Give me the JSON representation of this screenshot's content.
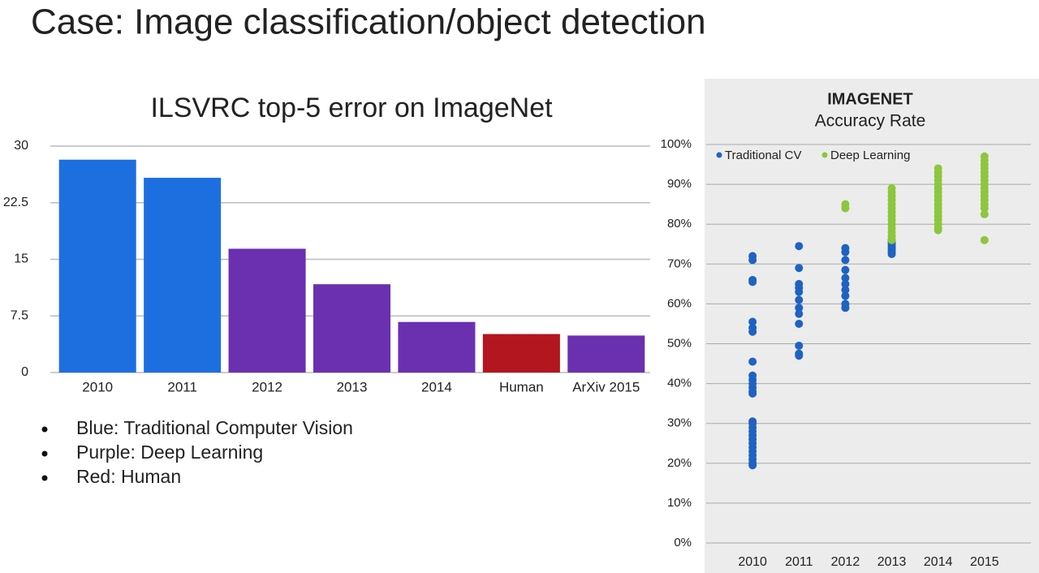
{
  "slide": {
    "title": "Case: Image classification/object detection",
    "bullets": [
      "Blue: Traditional Computer Vision",
      "Purple: Deep Learning",
      "Red: Human"
    ]
  },
  "chart_data": [
    {
      "type": "bar",
      "title": "ILSVRC top-5 error on ImageNet",
      "categories": [
        "2010",
        "2011",
        "2012",
        "2013",
        "2014",
        "Human",
        "ArXiv 2015"
      ],
      "values": [
        28.2,
        25.8,
        16.4,
        11.7,
        6.7,
        5.1,
        4.9
      ],
      "colors": [
        "#1d6fe0",
        "#1d6fe0",
        "#6b30b0",
        "#6b30b0",
        "#6b30b0",
        "#b3161f",
        "#6b30b0"
      ],
      "ylim": [
        0,
        30
      ],
      "yticks": [
        0,
        7.5,
        15,
        22.5,
        30
      ],
      "grid": true
    },
    {
      "type": "scatter",
      "title": "IMAGENET",
      "subtitle": "Accuracy Rate",
      "xlim": [
        2009,
        2016
      ],
      "xticks": [
        2010,
        2011,
        2012,
        2013,
        2014,
        2015
      ],
      "ylim": [
        0,
        100
      ],
      "yticks": [
        {
          "value": 0,
          "label": "0%"
        },
        {
          "value": 10,
          "label": "10%"
        },
        {
          "value": 20,
          "label": "20%"
        },
        {
          "value": 30,
          "label": "30%"
        },
        {
          "value": 40,
          "label": "40%"
        },
        {
          "value": 50,
          "label": "50%"
        },
        {
          "value": 60,
          "label": "60%"
        },
        {
          "value": 70,
          "label": "70%"
        },
        {
          "value": 80,
          "label": "80%"
        },
        {
          "value": 90,
          "label": "90%"
        },
        {
          "value": 100,
          "label": "100%"
        }
      ],
      "grid": true,
      "legend": "top-left",
      "series": [
        {
          "name": "Traditional CV",
          "color": "#1f62c2",
          "x": [
            2010,
            2010,
            2010,
            2010,
            2010,
            2010,
            2010,
            2010,
            2010,
            2010,
            2010,
            2010,
            2010,
            2010,
            2010,
            2010,
            2010,
            2010,
            2010,
            2010,
            2010,
            2010,
            2010,
            2010,
            2010,
            2010,
            2010,
            2011,
            2011,
            2011,
            2011,
            2011,
            2011,
            2011,
            2011,
            2011,
            2011,
            2011,
            2011,
            2012,
            2012,
            2012,
            2012,
            2012,
            2012,
            2012,
            2012,
            2012,
            2012,
            2013,
            2013,
            2013,
            2013,
            2013,
            2013,
            2013,
            2013
          ],
          "values": [
            72,
            71,
            66,
            65.5,
            55.5,
            54,
            53,
            45.5,
            42,
            41,
            40,
            39,
            38,
            37.5,
            30.5,
            30,
            29,
            28,
            27,
            26,
            25,
            24,
            23,
            22,
            21,
            20,
            19.5,
            74.5,
            69,
            65,
            64,
            63,
            61,
            59,
            57.5,
            55,
            49.5,
            47.5,
            47,
            74,
            73,
            71,
            68.5,
            66.5,
            65,
            63.5,
            62,
            60,
            59,
            76,
            75.5,
            75,
            74.5,
            74,
            73.5,
            73,
            72.5
          ]
        },
        {
          "name": "Deep Learning",
          "color": "#8dc63f",
          "x": [
            2012,
            2012,
            2013,
            2013,
            2013,
            2013,
            2013,
            2013,
            2013,
            2013,
            2013,
            2013,
            2013,
            2013,
            2013,
            2013,
            2014,
            2014,
            2014,
            2014,
            2014,
            2014,
            2014,
            2014,
            2014,
            2014,
            2014,
            2014,
            2014,
            2014,
            2014,
            2014,
            2014,
            2015,
            2015,
            2015,
            2015,
            2015,
            2015,
            2015,
            2015,
            2015,
            2015,
            2015,
            2015,
            2015,
            2015,
            2015,
            2015
          ],
          "values": [
            85,
            84,
            89,
            88,
            87,
            86,
            85,
            84,
            83,
            82,
            81,
            80,
            79,
            78,
            77,
            76,
            94,
            93,
            92,
            91,
            90,
            89,
            88,
            87,
            86,
            85,
            84,
            83,
            82,
            81,
            80,
            79,
            78.5,
            97,
            96,
            95,
            94,
            93,
            92,
            91,
            90,
            89,
            88,
            87,
            86,
            85,
            84,
            82.5,
            76
          ]
        }
      ]
    }
  ]
}
